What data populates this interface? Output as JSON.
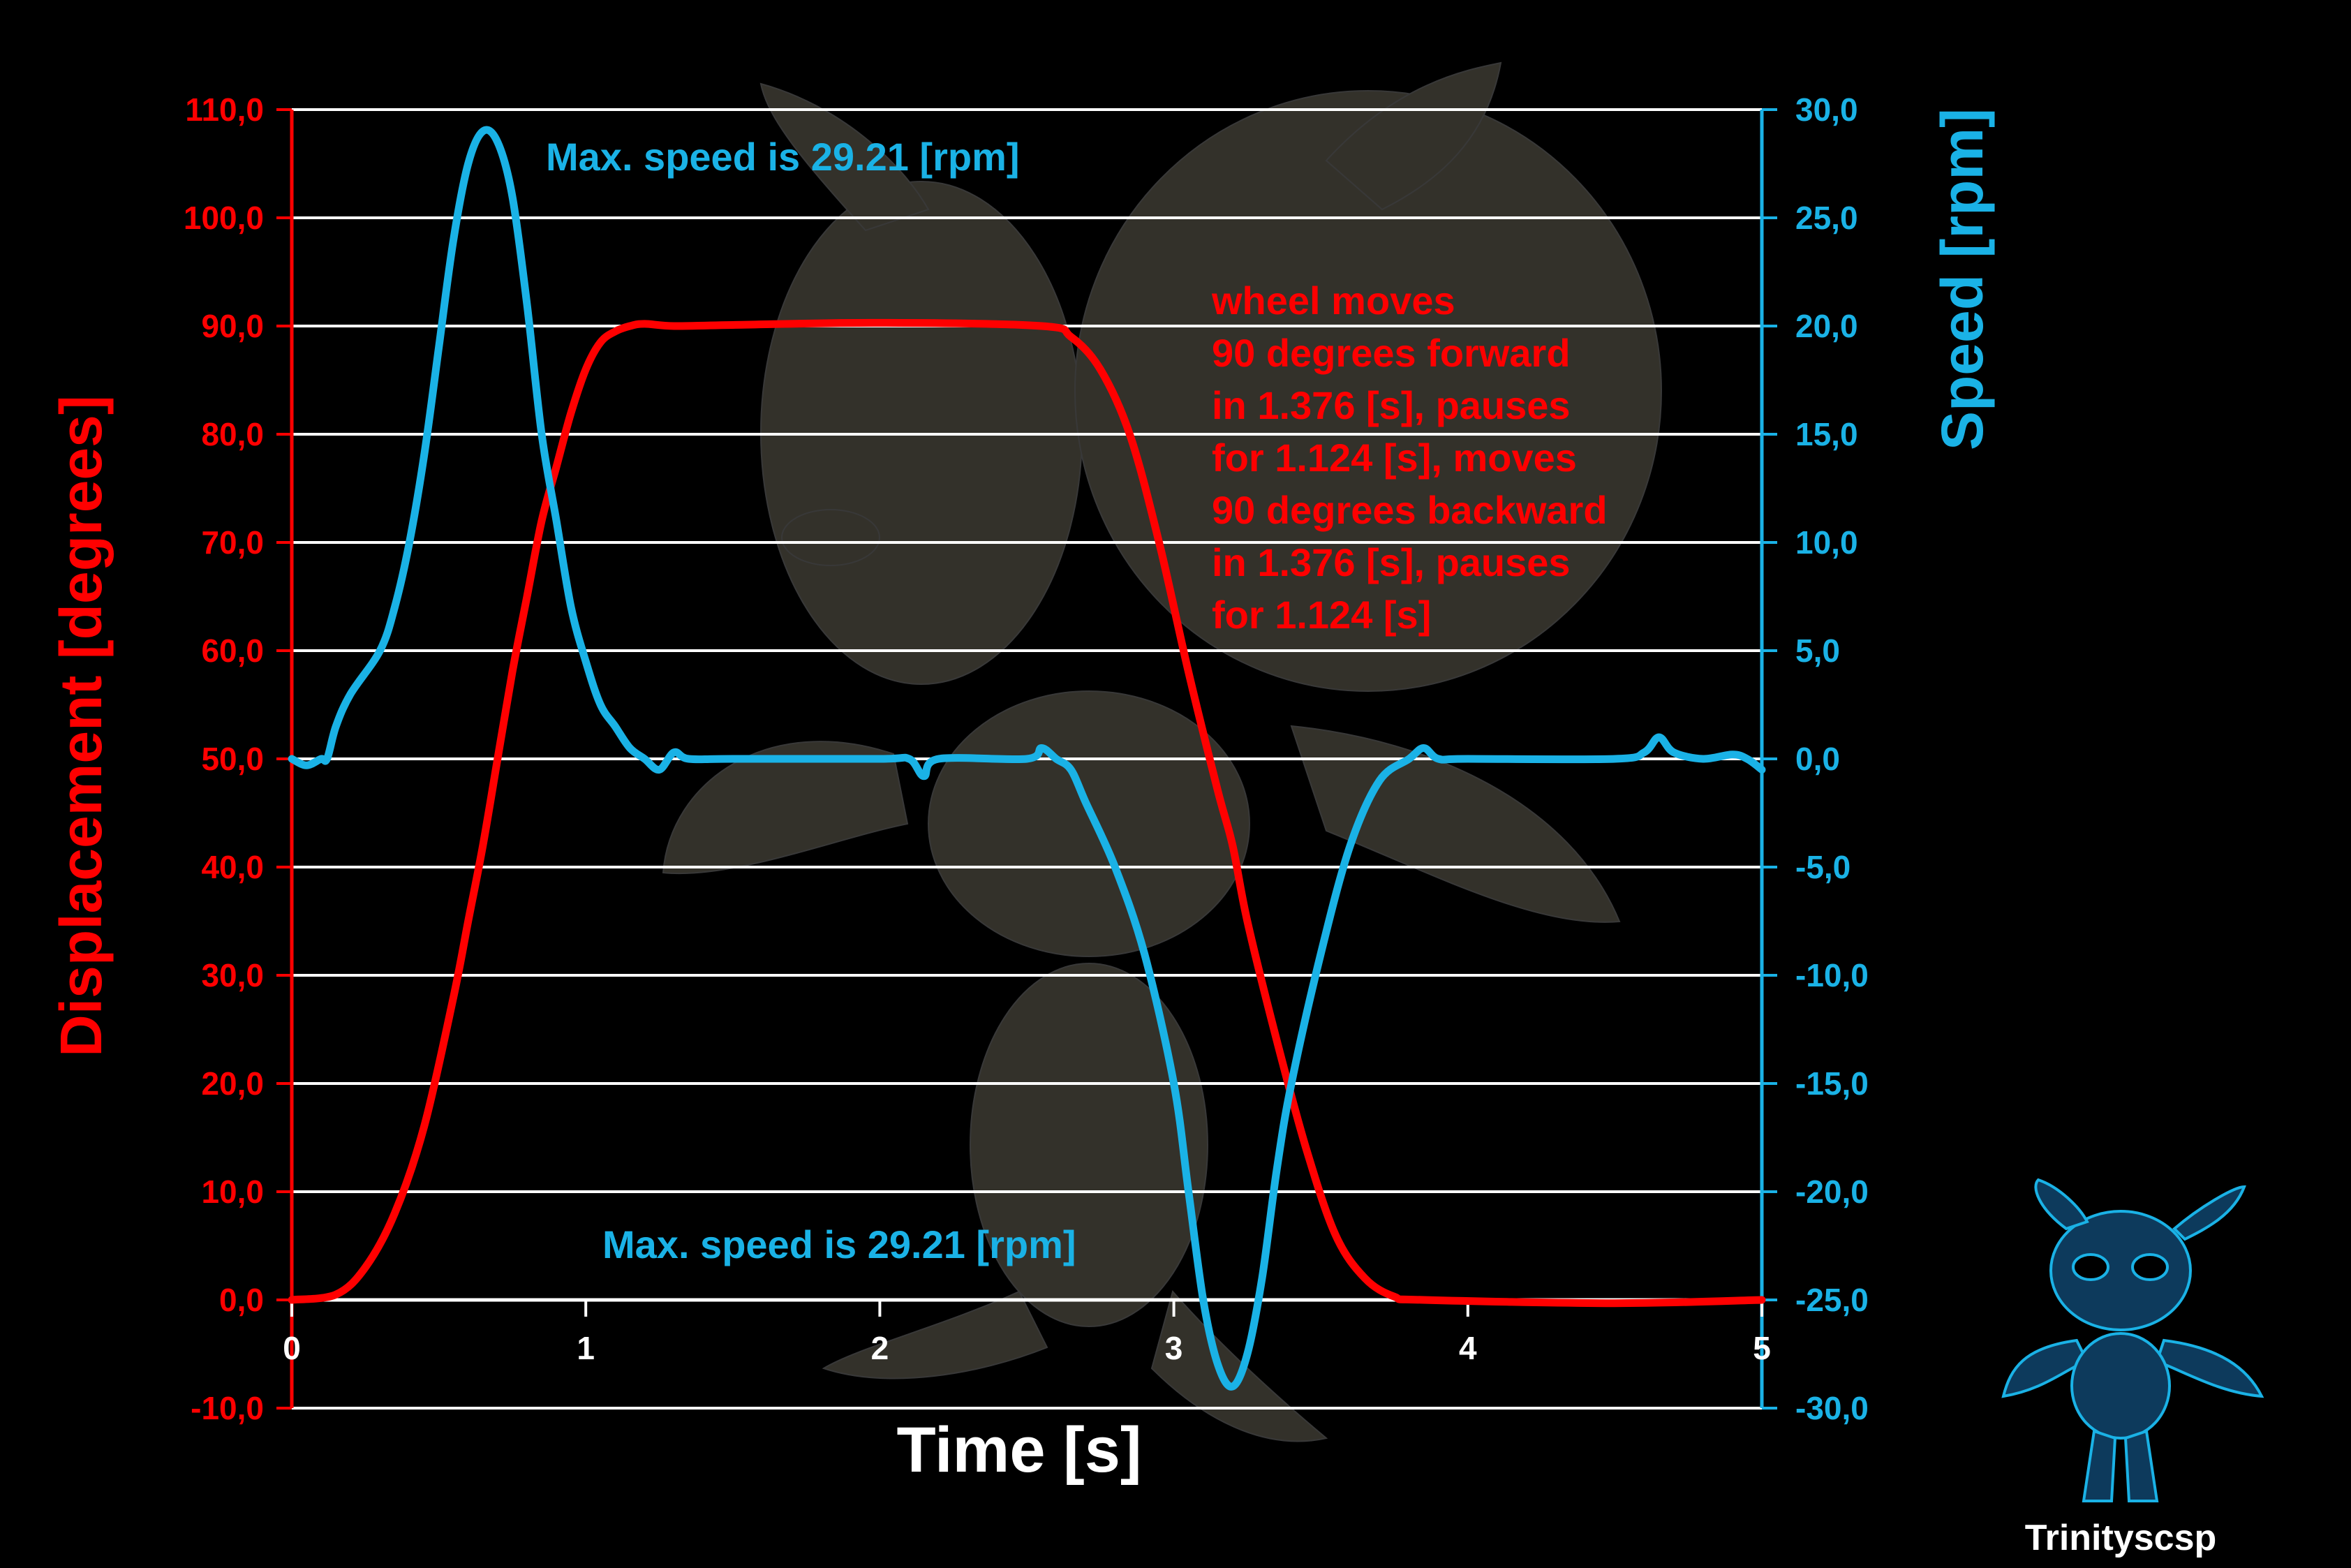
{
  "chart_data": {
    "type": "line",
    "title": "",
    "xlabel": "Time [s]",
    "ylabel_left": "Displacement [degrees]",
    "ylabel_right": "Speed [rpm]",
    "xlim": [
      0,
      5
    ],
    "ylim_left": [
      -10,
      110
    ],
    "ylim_right": [
      -30,
      30
    ],
    "x_ticks": [
      "0",
      "1",
      "2",
      "3",
      "4",
      "5"
    ],
    "y_ticks_left": [
      "-10,0",
      "0,0",
      "10,0",
      "20,0",
      "30,0",
      "40,0",
      "50,0",
      "60,0",
      "70,0",
      "80,0",
      "90,0",
      "100,0",
      "110,0"
    ],
    "y_ticks_right": [
      "-30,0",
      "-25,0",
      "-20,0",
      "-15,0",
      "-10,0",
      "-5,0",
      "0,0",
      "5,0",
      "10,0",
      "15,0",
      "20,0",
      "25,0",
      "30,0"
    ],
    "grid": true,
    "series": [
      {
        "axis": "left",
        "color": "#ff0000",
        "x": [
          0,
          0.15,
          0.25,
          0.35,
          0.45,
          0.55,
          0.6,
          0.65,
          0.7,
          0.75,
          0.8,
          0.85,
          0.9,
          0.95,
          1.0,
          1.05,
          1.1,
          1.15,
          1.2,
          1.3,
          1.5,
          2.0,
          2.55,
          2.65,
          2.75,
          2.85,
          2.95,
          3.05,
          3.15,
          3.2,
          3.25,
          3.35,
          3.45,
          3.55,
          3.65,
          3.75,
          3.85,
          4.5,
          5.0
        ],
        "y": [
          0,
          0.5,
          3,
          8,
          16,
          28,
          35,
          42,
          50,
          58,
          65,
          72,
          77,
          82,
          86,
          88.5,
          89.5,
          90,
          90.2,
          90,
          90.1,
          90.3,
          90,
          89,
          86,
          80,
          70,
          58,
          47,
          42,
          35,
          24,
          14,
          6,
          2,
          0.3,
          0,
          -0.3,
          0
        ]
      },
      {
        "axis": "right",
        "color": "#1ab2e6",
        "x": [
          0,
          0.05,
          0.1,
          0.12,
          0.15,
          0.2,
          0.3,
          0.35,
          0.4,
          0.45,
          0.5,
          0.55,
          0.6,
          0.65,
          0.7,
          0.75,
          0.8,
          0.85,
          0.9,
          0.95,
          1.0,
          1.05,
          1.1,
          1.15,
          1.2,
          1.25,
          1.3,
          1.35,
          1.5,
          2.0,
          2.1,
          2.15,
          2.2,
          2.5,
          2.55,
          2.6,
          2.65,
          2.7,
          2.8,
          2.9,
          3.0,
          3.05,
          3.1,
          3.15,
          3.2,
          3.25,
          3.3,
          3.35,
          3.4,
          3.5,
          3.6,
          3.7,
          3.8,
          3.85,
          3.9,
          4.0,
          4.5,
          4.6,
          4.65,
          4.7,
          4.8,
          4.9,
          4.95,
          5.0
        ],
        "y": [
          0,
          -0.3,
          0,
          0,
          1.5,
          3,
          5,
          7,
          10,
          14,
          19,
          24,
          27.5,
          29,
          28.5,
          26,
          21,
          15,
          11,
          7,
          4.5,
          2.5,
          1.5,
          0.5,
          0,
          -0.5,
          0.3,
          0,
          0,
          0,
          0,
          -0.8,
          0,
          0,
          0.5,
          0,
          -0.5,
          -2,
          -5,
          -9,
          -15,
          -20,
          -25,
          -28,
          -29,
          -27.5,
          -24,
          -19,
          -15,
          -9,
          -4,
          -1,
          0,
          0.5,
          0,
          0,
          0,
          0.3,
          1,
          0.3,
          0,
          0.2,
          0,
          -0.5
        ]
      }
    ],
    "annotations": {
      "max_speed_top": "Max. speed is 29.21 [rpm]",
      "max_speed_bottom": "Max. speed is 29.21 [rpm]",
      "description": [
        "wheel moves",
        "90 degrees forward",
        "in 1.376 [s], pauses",
        "for 1.124 [s], moves",
        "90 degrees backward",
        "in 1.376 [s], pauses",
        "for 1.124 [s]"
      ]
    }
  },
  "branding": {
    "name": "Trinityscsp"
  },
  "colors": {
    "displacement": "#ff0000",
    "speed": "#1ab2e6",
    "grid": "#ffffff",
    "background": "#000000"
  }
}
